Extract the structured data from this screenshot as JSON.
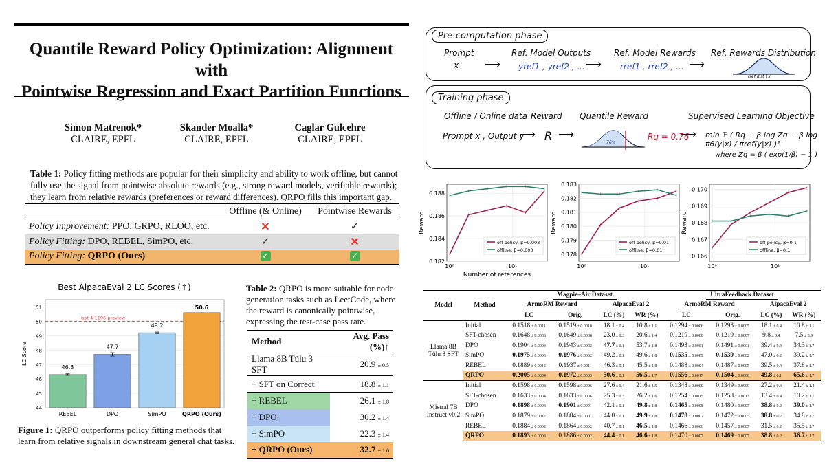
{
  "paper": {
    "title_line1": "Quantile Reward Policy Optimization: Alignment with",
    "title_line2": "Pointwise Regression and Exact Partition Functions",
    "authors": [
      {
        "name": "Simon Matrenok*",
        "affil": "CLAIRE, EPFL"
      },
      {
        "name": "Skander Moalla*",
        "affil": "CLAIRE, EPFL"
      },
      {
        "name": "Caglar Gulcehre",
        "affil": "CLAIRE, EPFL"
      }
    ]
  },
  "table1": {
    "caption_label": "Table 1:",
    "caption": "Policy fitting methods are popular for their simplicity and ability to work offline, but cannot fully use the signal from pointwise absolute rewards (e.g., strong reward models, verifiable rewards); they learn from relative rewards (preferences or reward differences). QRPO fills this important gap.",
    "col1": "Offline (& Online)",
    "col2": "Pointwise Rewards",
    "rows": [
      {
        "head": "Policy Improvement:",
        "methods": "PPO, GRPO, RLOO, etc."
      },
      {
        "head": "Policy Fitting:",
        "methods": "DPO, REBEL, SimPO, etc."
      },
      {
        "head": "Policy Fitting:",
        "methods": "QRPO (Ours)"
      }
    ]
  },
  "figure1": {
    "caption_label": "Figure 1:",
    "caption": "QRPO outperforms policy fitting methods that learn from relative signals in downstream general chat tasks."
  },
  "chart_data": [
    {
      "type": "bar",
      "title": "Best AlpacaEval 2 LC Scores (↑)",
      "ylabel": "LC Score",
      "categories": [
        "REBEL",
        "DPO",
        "SimPO",
        "QRPO (Ours)"
      ],
      "values": [
        46.3,
        47.7,
        49.2,
        50.6
      ],
      "error": [
        0.05,
        0.12,
        0.05,
        0
      ],
      "ylim": [
        44,
        51.5
      ],
      "yticks": [
        44,
        45,
        46,
        47,
        48,
        49,
        50,
        51
      ],
      "reference_line": {
        "label": "gpt-4-1106-preview",
        "value": 50
      },
      "colors": [
        "#7fc79a",
        "#7ea1e6",
        "#a7d1f2",
        "#f2a33b"
      ]
    },
    {
      "type": "line",
      "xlabel": "Number of references",
      "ylabel": "Reward",
      "x": [
        1,
        2,
        4,
        8,
        16,
        32
      ],
      "log_x": true,
      "ylim": [
        0.182,
        0.1888
      ],
      "yticks": [
        0.182,
        0.184,
        0.186,
        0.188
      ],
      "series": [
        {
          "name": "off-policy, β=0.003",
          "color": "#9c2358",
          "values": [
            0.1826,
            0.1861,
            0.1865,
            0.1869,
            0.1863,
            0.1882
          ]
        },
        {
          "name": "offline, β=0.003",
          "color": "#2f7f6f",
          "values": [
            0.1878,
            0.1882,
            0.1884,
            0.1886,
            0.1886,
            0.1884
          ]
        }
      ]
    },
    {
      "type": "line",
      "xlabel": "",
      "ylabel": "Reward",
      "x": [
        1,
        2,
        4,
        8,
        16,
        32
      ],
      "log_x": true,
      "ylim": [
        0.1775,
        0.183
      ],
      "yticks": [
        0.178,
        0.179,
        0.18,
        0.181,
        0.182,
        0.183
      ],
      "series": [
        {
          "name": "off-policy, β=0.01",
          "color": "#9c2358",
          "values": [
            0.178,
            0.1801,
            0.1813,
            0.1818,
            0.182,
            0.1825
          ]
        },
        {
          "name": "offline, β=0.01",
          "color": "#2f7f6f",
          "values": [
            0.1824,
            0.1823,
            0.1823,
            0.1825,
            0.1826,
            0.1822
          ]
        }
      ]
    },
    {
      "type": "line",
      "xlabel": "",
      "ylabel": "Reward",
      "x": [
        1,
        2,
        4,
        8,
        16,
        32
      ],
      "log_x": true,
      "ylim": [
        0.1657,
        0.1703
      ],
      "yticks": [
        0.166,
        0.167,
        0.168,
        0.169,
        0.17
      ],
      "series": [
        {
          "name": "off-policy, β=0.1",
          "color": "#9c2358",
          "values": [
            0.1665,
            0.1679,
            0.1686,
            0.1692,
            0.1698,
            0.1701
          ]
        },
        {
          "name": "offline, β=0.1",
          "color": "#2f7f6f",
          "values": [
            0.1681,
            0.1681,
            0.1684,
            0.1685,
            0.1684,
            0.1687
          ]
        }
      ]
    }
  ],
  "table2": {
    "caption_label": "Table 2:",
    "caption": "QRPO is more suitable for code generation tasks such as LeetCode, where the reward is canonically pointwise, expressing the test-case pass rate.",
    "h_method": "Method",
    "h_pass": "Avg. Pass (%)↑",
    "rows": [
      {
        "method": "Llama 8B Tülu 3 SFT",
        "value": "20.9",
        "err": "± 0.5"
      },
      {
        "method": "+ SFT on Correct",
        "value": "18.8",
        "err": "± 1.1"
      },
      {
        "method": "+ REBEL",
        "value": "26.1",
        "err": "± 1.8",
        "color": "#9fd8a6"
      },
      {
        "method": "+ DPO",
        "value": "30.2",
        "err": "± 1.4",
        "color": "#a9c0ee"
      },
      {
        "method": "+ SimPO",
        "value": "22.3",
        "err": "± 1.4",
        "color": "#c8e3f5"
      },
      {
        "method": "+ QRPO (Ours)",
        "value": "32.7",
        "err": "± 1.0",
        "color": "#f6b56a"
      }
    ]
  },
  "diagram": {
    "pre_title": "Pre-computation phase",
    "prompt": "Prompt",
    "x": "x",
    "ref_outputs": "Ref. Model Outputs",
    "ref_outputs_val": "yref1 , yref2 , ...",
    "ref_rewards": "Ref. Model Rewards",
    "ref_rewards_val": "rref1 , rref2 , ...",
    "ref_dist": "Ref. Rewards Distribution",
    "ref_dist_sub": "rref dist | x",
    "train_title": "Training phase",
    "data": "Offline / Online data",
    "reward": "Reward",
    "quantile": "Quantile Reward",
    "objective": "Supervised Learning Objective",
    "prompt_output": "Prompt x , Output y",
    "R": "R",
    "Rq": "Rq = 0.76",
    "pct": "76%",
    "loss": "min 𝔼 ( Rq − β log Zq − β log πθ(y|x) / πref(y|x) )²",
    "where": "where  Zq = β ( exp(1/β) − 1 )"
  },
  "table3": {
    "h_model": "Model",
    "h_method": "Method",
    "ds1": "Magpie–Air Dataset",
    "ds2": "UltraFeedback Dataset",
    "armo": "ArmoRM Reward",
    "alpaca": "AlpacaEval 2",
    "lc": "LC",
    "orig": "Orig.",
    "lcp": "LC (%)",
    "wrp": "WR (%)",
    "blocks": [
      {
        "model": "Llama 8B Tülu 3 SFT",
        "rows": [
          [
            "Initial",
            "0.1518",
            "± 0.0011",
            "0.1519",
            "± 0.0010",
            "18.1",
            "± 0.4",
            "10.8",
            "± 1.1",
            "0.1294",
            "± 0.0006",
            "0.1293",
            "± 0.0005",
            "18.1",
            "± 0.4",
            "10.8",
            "± 1.1"
          ],
          [
            "SFT-chosen",
            "0.1648",
            "± 0.0008",
            "0.1649",
            "± 0.0008",
            "23.0",
            "± 0.3",
            "20.6",
            "± 1.4",
            "0.1219",
            "± 0.0008",
            "0.1219",
            "± 0.0007",
            "9.8",
            "± 0.4",
            "7.5",
            "± 0.9"
          ],
          [
            "DPO",
            "0.1904",
            "± 0.0003",
            "0.1943",
            "± 0.0002",
            "47.7",
            "± 0.1",
            "53.7",
            "± 1.8",
            "0.1493",
            "± 0.0001",
            "0.1491",
            "± 0.0001",
            "39.4",
            "± 0.4",
            "34.3",
            "± 1.7"
          ],
          [
            "SimPO",
            "0.1975",
            "± 0.0003",
            "0.1976",
            "± 0.0002",
            "49.2",
            "± 0.1",
            "49.6",
            "± 1.8",
            "0.1535",
            "± 0.0009",
            "0.1539",
            "± 0.0002",
            "47.0",
            "± 0.2",
            "39.2",
            "± 1.7"
          ],
          [
            "REBEL",
            "0.1889",
            "± 0.0012",
            "0.1937",
            "± 0.0011",
            "46.3",
            "± 0.1",
            "45.5",
            "± 1.8",
            "0.1488",
            "± 0.0004",
            "0.1487",
            "± 0.0005",
            "39.5",
            "± 0.4",
            "37.8",
            "± 1.7"
          ],
          [
            "QRPO",
            "0.2005",
            "± 0.0004",
            "0.1972",
            "± 0.0003",
            "50.6",
            "± 0.1",
            "56.5",
            "± 1.7",
            "0.1556",
            "± 0.0017",
            "0.1504",
            "± 0.0008",
            "49.8",
            "± 0.1",
            "65.6",
            "± 1.7"
          ]
        ],
        "bold": [
          [
            3,
            1
          ],
          [
            4,
            1
          ],
          [
            6,
            1
          ],
          [
            1,
            1
          ],
          [
            2,
            1
          ],
          [
            5,
            1
          ],
          [
            7,
            1
          ],
          [
            8,
            1
          ]
        ]
      },
      {
        "model": "Mistral 7B Instruct v0.2",
        "rows": [
          [
            "Initial",
            "0.1598",
            "± 0.0008",
            "0.1598",
            "± 0.0006",
            "27.6",
            "± 0.4",
            "21.6",
            "± 1.5",
            "0.1348",
            "± 0.0009",
            "0.1349",
            "± 0.0009",
            "27.2",
            "± 0.4",
            "21.4",
            "± 1.4"
          ],
          [
            "SFT-chosen",
            "0.1633",
            "± 0.0004",
            "0.1633",
            "± 0.0006",
            "25.3",
            "± 0.3",
            "26.2",
            "± 1.6",
            "0.1254",
            "± 0.0015",
            "0.1258",
            "± 0.0013",
            "13.4",
            "± 0.4",
            "10.2",
            "± 1.1"
          ],
          [
            "DPO",
            "0.1898",
            "± 0.0003",
            "0.1901",
            "± 0.0001",
            "42.1",
            "± 0.1",
            "49.8",
            "± 1.8",
            "0.1465",
            "± 0.0008",
            "0.1480",
            "± 0.0007",
            "38.8",
            "± 0.2",
            "39.0",
            "± 1.7"
          ],
          [
            "SimPO",
            "0.1879",
            "± 0.0012",
            "0.1884",
            "± 0.0001",
            "44.0",
            "± 0.1",
            "49.9",
            "± 1.8",
            "0.1478",
            "± 0.0007",
            "0.1472",
            "± 0.0005",
            "38.8",
            "± 0.2",
            "34.8",
            "± 1.7"
          ],
          [
            "REBEL",
            "0.1884",
            "± 0.0002",
            "0.1864",
            "± 0.0002",
            "40.7",
            "± 0.1",
            "46.5",
            "± 1.8",
            "0.1466",
            "± 0.0006",
            "0.1457",
            "± 0.0007",
            "31.5",
            "± 0.2",
            "35.5",
            "± 1.7"
          ],
          [
            "QRPO",
            "0.1893",
            "± 0.0003",
            "0.1886",
            "± 0.0002",
            "44.4",
            "± 0.1",
            "46.6",
            "± 1.8",
            "0.1470",
            "± 0.0007",
            "0.1469",
            "± 0.0007",
            "38.8",
            "± 0.2",
            "36.7",
            "± 1.7"
          ]
        ]
      }
    ]
  }
}
